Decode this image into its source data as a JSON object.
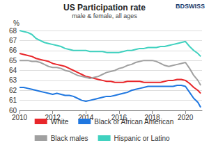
{
  "chart_data": {
    "type": "line",
    "title": "US Participation rate",
    "subtitle": "male & female, all ages",
    "ylabel": "%",
    "annotations": [
      "BDSWISS"
    ],
    "x": [
      2010,
      2010.25,
      2010.5,
      2010.75,
      2011,
      2011.25,
      2011.5,
      2011.75,
      2012,
      2012.25,
      2012.5,
      2012.75,
      2013,
      2013.25,
      2013.5,
      2013.75,
      2014,
      2014.25,
      2014.5,
      2014.75,
      2015,
      2015.25,
      2015.5,
      2015.75,
      2016,
      2016.25,
      2016.5,
      2016.75,
      2017,
      2017.25,
      2017.5,
      2017.75,
      2018,
      2018.25,
      2018.5,
      2018.75,
      2019,
      2019.25,
      2019.5,
      2019.75,
      2020,
      2020.25,
      2020.5,
      2020.75,
      2020.92
    ],
    "series": [
      {
        "name": "White",
        "color": "#e8262a",
        "values": [
          65.7,
          65.6,
          65.5,
          65.4,
          65.2,
          65.1,
          65.0,
          64.9,
          64.7,
          64.6,
          64.5,
          64.4,
          64.2,
          64.0,
          63.8,
          63.6,
          63.4,
          63.3,
          63.2,
          63.1,
          63.0,
          62.9,
          62.9,
          62.8,
          62.8,
          62.8,
          62.9,
          62.9,
          62.9,
          62.9,
          62.8,
          62.8,
          62.8,
          62.8,
          62.8,
          62.9,
          63.0,
          63.0,
          63.1,
          63.1,
          63.0,
          62.7,
          62.3,
          62.0,
          61.7
        ]
      },
      {
        "name": "Black or African American",
        "color": "#1f77e0",
        "values": [
          62.3,
          62.3,
          62.2,
          62.1,
          62.0,
          61.9,
          61.8,
          61.7,
          61.6,
          61.7,
          61.6,
          61.5,
          61.5,
          61.4,
          61.2,
          61.0,
          60.9,
          61.0,
          61.1,
          61.2,
          61.3,
          61.4,
          61.4,
          61.5,
          61.6,
          61.7,
          61.8,
          62.0,
          62.1,
          62.2,
          62.3,
          62.4,
          62.4,
          62.4,
          62.4,
          62.4,
          62.4,
          62.4,
          62.5,
          62.5,
          62.4,
          61.8,
          61.2,
          60.8,
          60.3
        ]
      },
      {
        "name": "Black males",
        "color": "#a0a0a0",
        "values": [
          65.0,
          65.0,
          65.0,
          64.9,
          64.9,
          64.8,
          64.6,
          64.4,
          64.3,
          64.3,
          64.2,
          64.0,
          63.9,
          63.7,
          63.5,
          63.4,
          63.3,
          63.2,
          63.3,
          63.4,
          63.6,
          63.8,
          63.9,
          64.0,
          64.2,
          64.3,
          64.5,
          64.6,
          64.8,
          64.9,
          65.0,
          65.0,
          65.0,
          64.9,
          64.7,
          64.5,
          64.4,
          64.5,
          64.6,
          64.7,
          64.8,
          64.2,
          63.5,
          63.0,
          62.5
        ]
      },
      {
        "name": "Hispanic or Latino",
        "color": "#3fd1bf",
        "values": [
          68.0,
          67.9,
          67.8,
          67.6,
          67.2,
          67.0,
          66.8,
          66.7,
          66.6,
          66.5,
          66.4,
          66.2,
          66.1,
          66.0,
          66.0,
          66.0,
          66.0,
          65.9,
          65.9,
          65.9,
          65.9,
          65.8,
          65.8,
          65.8,
          65.8,
          65.9,
          66.0,
          66.0,
          66.1,
          66.2,
          66.2,
          66.3,
          66.3,
          66.3,
          66.4,
          66.4,
          66.5,
          66.6,
          66.7,
          66.8,
          66.9,
          66.4,
          66.0,
          65.7,
          65.4
        ]
      }
    ],
    "xlim": [
      2010,
      2021
    ],
    "xticks": [
      2010,
      2012,
      2014,
      2016,
      2018,
      2020
    ],
    "ylim": [
      60,
      68
    ],
    "yticks": [
      60,
      61,
      62,
      63,
      64,
      65,
      66,
      67,
      68
    ],
    "grid": true,
    "legend": "bottom"
  }
}
